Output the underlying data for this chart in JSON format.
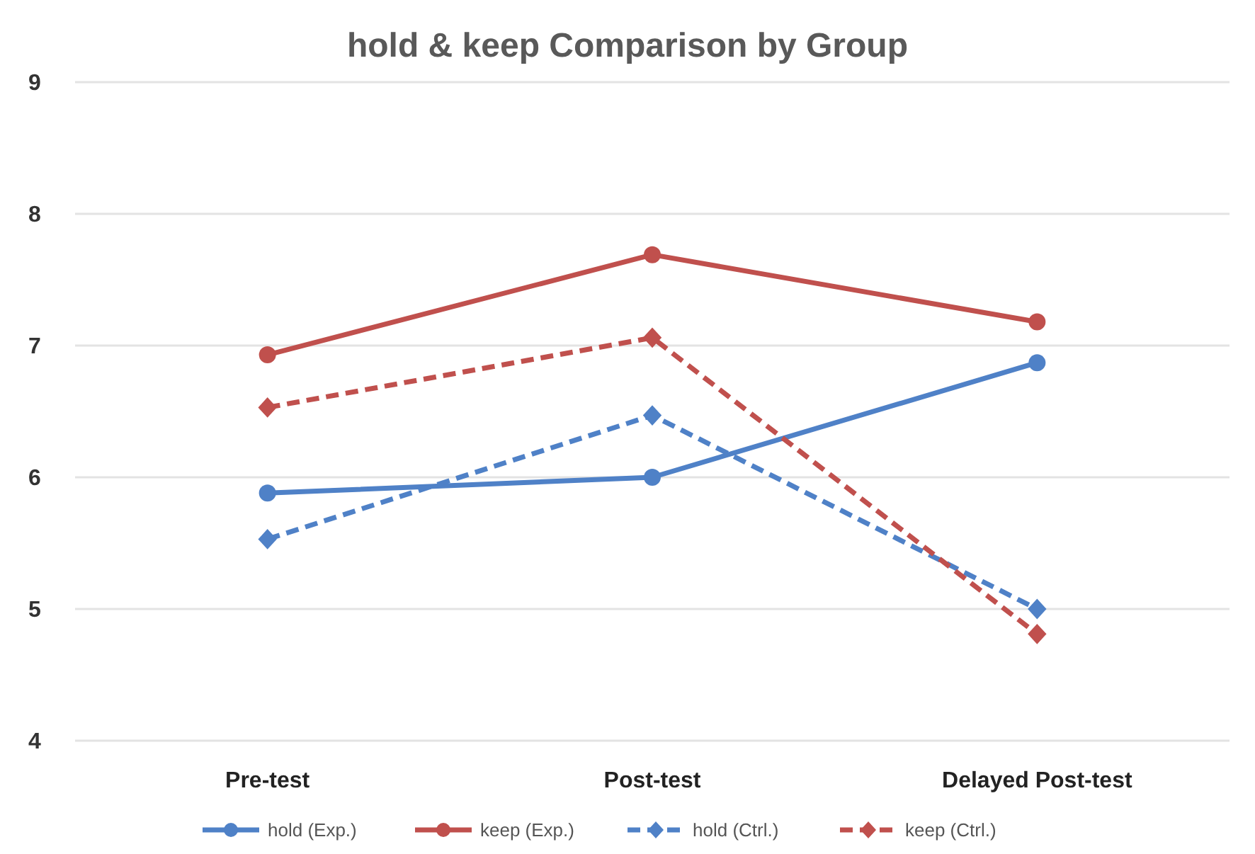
{
  "chart_data": {
    "type": "line",
    "title": "hold & keep Comparison by Group",
    "categories": [
      "Pre-test",
      "Post-test",
      "Delayed Post-test"
    ],
    "series": [
      {
        "name": "hold (Exp.)",
        "color": "#4f81c7",
        "values": [
          5.88,
          6.0,
          6.87
        ],
        "marker": "circle",
        "line_style": "solid"
      },
      {
        "name": "keep (Exp.)",
        "color": "#c0504d",
        "values": [
          6.93,
          7.69,
          7.18
        ],
        "marker": "circle",
        "line_style": "solid"
      },
      {
        "name": "hold (Ctrl.)",
        "color": "#4f81c7",
        "values": [
          5.53,
          6.47,
          5.0
        ],
        "marker": "diamond",
        "line_style": "dashed"
      },
      {
        "name": "keep (Ctrl.)",
        "color": "#c0504d",
        "values": [
          6.53,
          7.06,
          4.81
        ],
        "marker": "diamond",
        "line_style": "dashed"
      }
    ],
    "ylim": [
      4,
      9
    ],
    "yticks": [
      4,
      5,
      6,
      7,
      8,
      9
    ],
    "grid": "y",
    "legend": "bottom"
  }
}
